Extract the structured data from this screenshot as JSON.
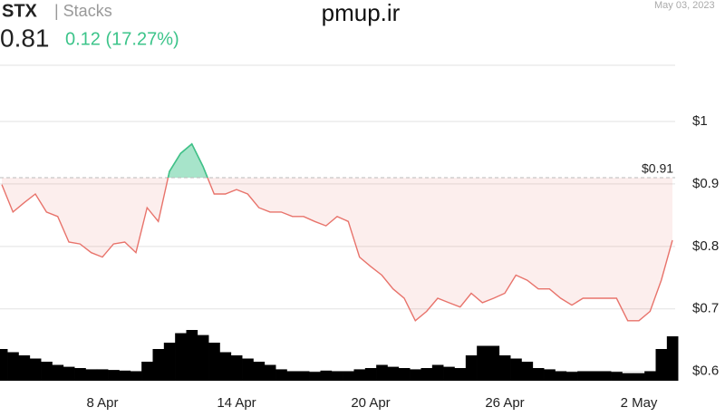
{
  "header": {
    "symbol": "STX",
    "name": "| Stacks",
    "price": "0.81",
    "change": "0.12 (17.27%)",
    "date": "May 03, 2023"
  },
  "watermark": "pmup.ir",
  "chart_data": {
    "type": "line",
    "categories": [
      null,
      null,
      null,
      null,
      null,
      null,
      null,
      null,
      null,
      "8 Apr",
      null,
      null,
      null,
      null,
      null,
      null,
      null,
      null,
      null,
      null,
      null,
      "14 Apr",
      null,
      null,
      null,
      null,
      null,
      null,
      null,
      null,
      null,
      null,
      null,
      "20 Apr",
      null,
      null,
      null,
      null,
      null,
      null,
      null,
      null,
      null,
      null,
      null,
      "26 Apr",
      null,
      null,
      null,
      null,
      null,
      null,
      null,
      null,
      null,
      null,
      null,
      "2 May",
      null,
      null,
      null
    ],
    "values": [
      0.899,
      0.855,
      0.87,
      0.884,
      0.855,
      0.848,
      0.807,
      0.804,
      0.79,
      0.783,
      0.804,
      0.807,
      0.79,
      0.862,
      0.84,
      0.92,
      0.949,
      0.964,
      0.928,
      0.884,
      0.884,
      0.891,
      0.884,
      0.862,
      0.855,
      0.855,
      0.848,
      0.848,
      0.84,
      0.833,
      0.848,
      0.84,
      0.783,
      0.768,
      0.754,
      0.732,
      0.717,
      0.681,
      0.696,
      0.717,
      0.71,
      0.703,
      0.725,
      0.71,
      0.717,
      0.725,
      0.754,
      0.746,
      0.732,
      0.732,
      0.717,
      0.706,
      0.717,
      0.717,
      0.717,
      0.717,
      0.681,
      0.681,
      0.696,
      0.746,
      0.81
    ],
    "volume": [
      50,
      45,
      40,
      35,
      30,
      25,
      22,
      20,
      18,
      18,
      17,
      16,
      15,
      30,
      50,
      60,
      75,
      80,
      72,
      60,
      45,
      40,
      35,
      30,
      25,
      18,
      15,
      15,
      14,
      16,
      15,
      15,
      18,
      20,
      25,
      22,
      20,
      18,
      20,
      25,
      22,
      20,
      40,
      55,
      55,
      40,
      35,
      30,
      20,
      18,
      15,
      14,
      15,
      15,
      15,
      14,
      12,
      12,
      15,
      50,
      70
    ],
    "volume_lim": [
      0,
      100
    ],
    "color": "#e8736b",
    "up_color": "#3cc48a",
    "volume_color": "#000000",
    "baseline": {
      "value": 0.91,
      "label": "$0.91"
    },
    "ylim": [
      0.585,
      1.09
    ],
    "yticks": [
      {
        "value": 0.6,
        "label": "$0.6"
      },
      {
        "value": 0.7,
        "label": "$0.7"
      },
      {
        "value": 0.8,
        "label": "$0.8"
      },
      {
        "value": 0.9,
        "label": "$0.9"
      },
      {
        "value": 1,
        "label": "$1"
      }
    ],
    "grid": true
  }
}
